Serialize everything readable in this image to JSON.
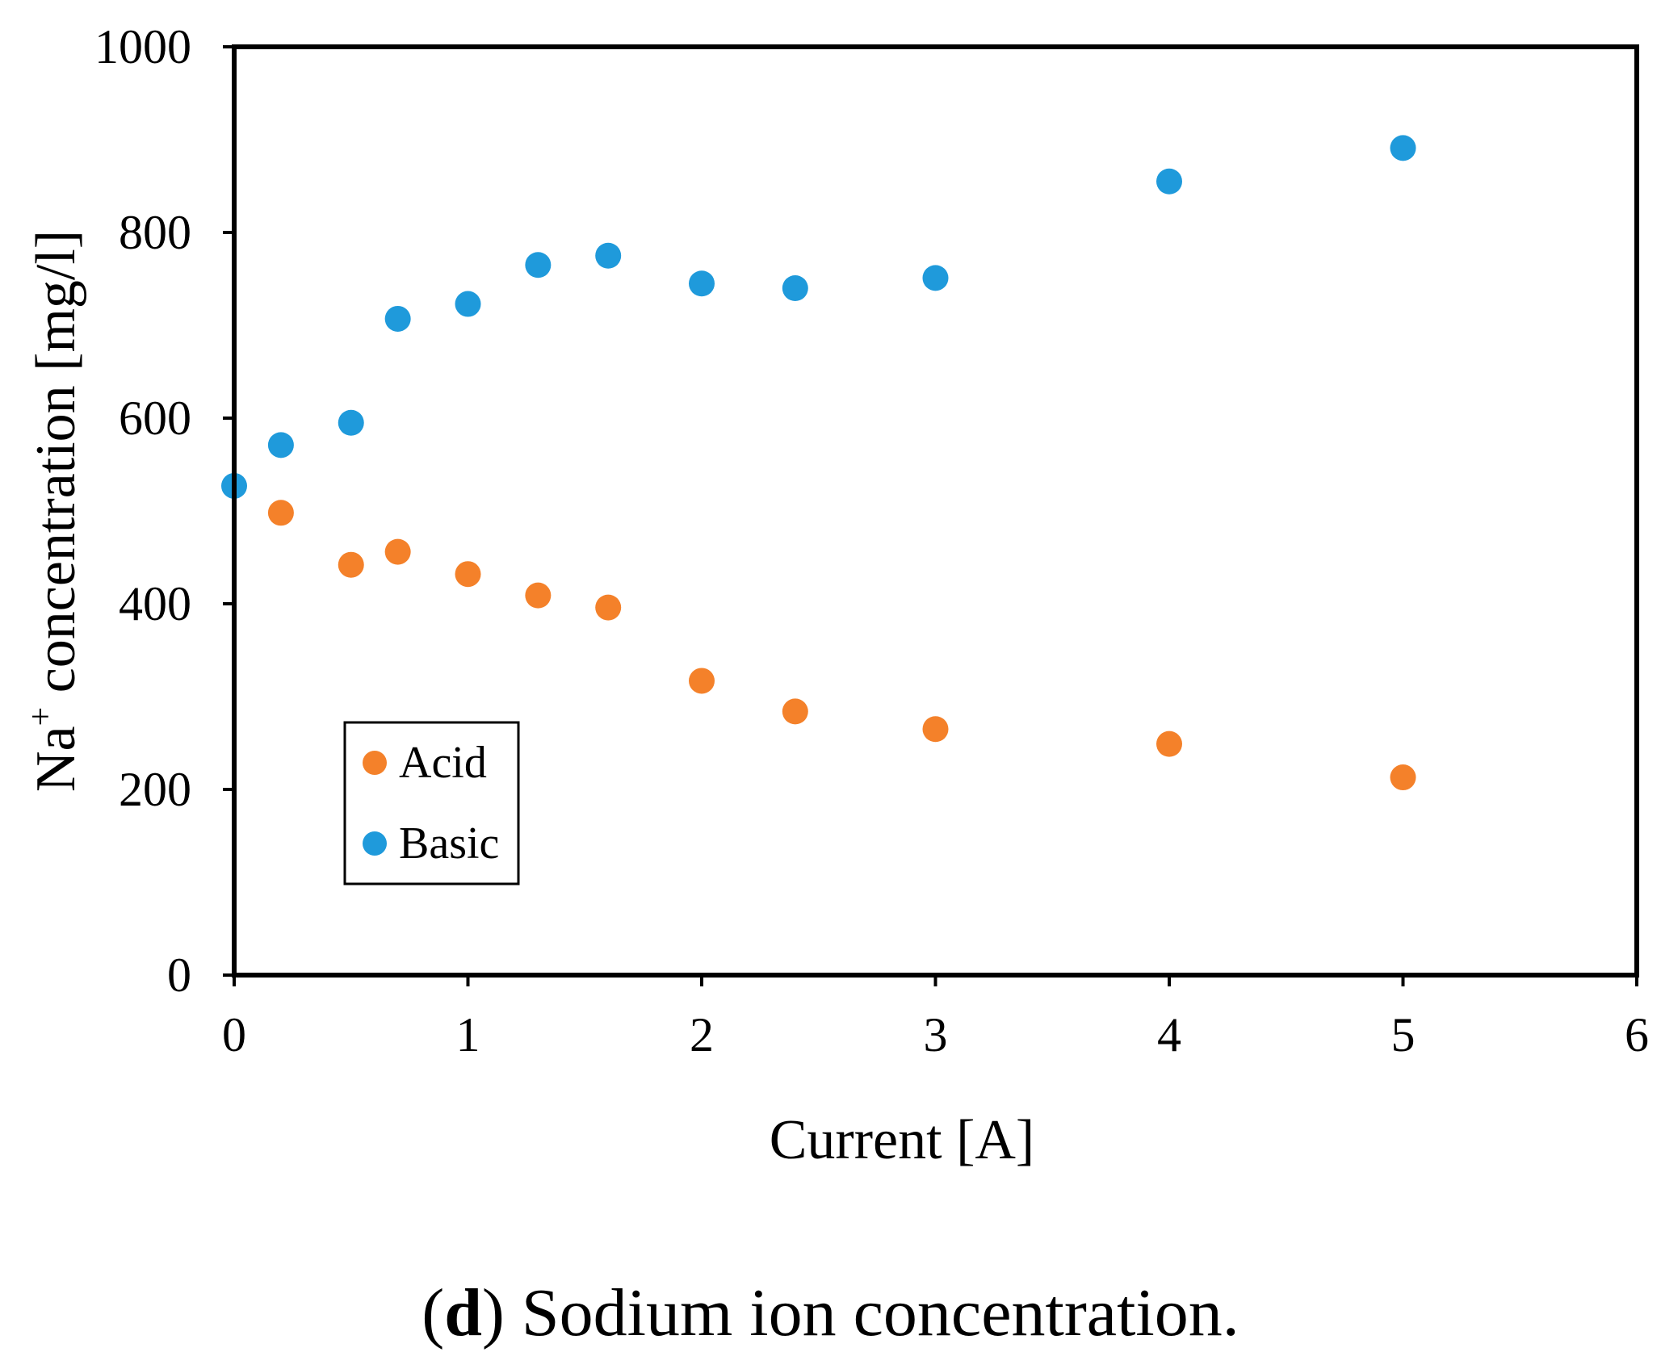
{
  "chart_data": {
    "type": "scatter",
    "title": "",
    "xlabel": "Current [A]",
    "ylabel_main": "Na",
    "ylabel_sup": "+",
    "ylabel_rest": " concentration [mg/l]",
    "xlim": [
      0,
      6
    ],
    "ylim": [
      0,
      1000
    ],
    "xticks": [
      0,
      1,
      2,
      3,
      4,
      5,
      6
    ],
    "yticks": [
      0,
      200,
      400,
      600,
      800,
      1000
    ],
    "grid": false,
    "legend_position": "lower-left",
    "series": [
      {
        "name": "Acid",
        "color": "#F4812A",
        "points": [
          {
            "x": 0.2,
            "y": 498
          },
          {
            "x": 0.5,
            "y": 442
          },
          {
            "x": 0.7,
            "y": 456
          },
          {
            "x": 1.0,
            "y": 432
          },
          {
            "x": 1.3,
            "y": 409
          },
          {
            "x": 1.6,
            "y": 396
          },
          {
            "x": 2.0,
            "y": 317
          },
          {
            "x": 2.4,
            "y": 284
          },
          {
            "x": 3.0,
            "y": 265
          },
          {
            "x": 4.0,
            "y": 249
          },
          {
            "x": 5.0,
            "y": 213
          }
        ]
      },
      {
        "name": "Basic",
        "color": "#1F9ADB",
        "points": [
          {
            "x": 0.0,
            "y": 527
          },
          {
            "x": 0.2,
            "y": 571
          },
          {
            "x": 0.5,
            "y": 595
          },
          {
            "x": 0.7,
            "y": 707
          },
          {
            "x": 1.0,
            "y": 723
          },
          {
            "x": 1.3,
            "y": 765
          },
          {
            "x": 1.6,
            "y": 775
          },
          {
            "x": 2.0,
            "y": 745
          },
          {
            "x": 2.4,
            "y": 740
          },
          {
            "x": 3.0,
            "y": 751
          },
          {
            "x": 4.0,
            "y": 855
          },
          {
            "x": 5.0,
            "y": 891
          }
        ]
      }
    ]
  },
  "caption": {
    "label": "d",
    "text": " Sodium ion concentration."
  }
}
